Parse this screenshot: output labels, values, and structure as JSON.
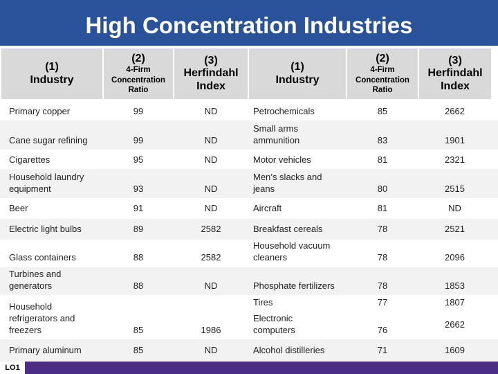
{
  "title": "High Concentration Industries",
  "columns": {
    "c1_num": "(1)",
    "c1_label": "Industry",
    "c2_num": "(2)",
    "c2_label_1": "4-Firm",
    "c2_label_2": "Concentration",
    "c2_label_3": "Ratio",
    "c3_num": "(3)",
    "c3_label_1": "Herfindahl",
    "c3_label_2": "Index",
    "c4_num": "(1)",
    "c4_label": "Industry",
    "c5_num": "(2)",
    "c5_label_1": "4-Firm",
    "c5_label_2": "Concentration",
    "c5_label_3": "Ratio",
    "c6_num": "(3)",
    "c6_label_1": "Herfindahl",
    "c6_label_2": "Index"
  },
  "rows": [
    {
      "left_industry": "Primary copper",
      "left_ratio": "99",
      "left_index": "ND",
      "right_industry": "Petrochemicals",
      "right_ratio": "85",
      "right_index": "2662"
    },
    {
      "left_industry": "Cane sugar refining",
      "left_ratio": "99",
      "left_index": "ND",
      "right_industry": "Small arms ammunition",
      "right_ratio": "83",
      "right_index": "1901"
    },
    {
      "left_industry": "Cigarettes",
      "left_ratio": "95",
      "left_index": "ND",
      "right_industry": "Motor vehicles",
      "right_ratio": "81",
      "right_index": "2321"
    },
    {
      "left_industry": "Household laundry equipment",
      "left_ratio": "93",
      "left_index": "ND",
      "right_industry": "Men’s slacks and jeans",
      "right_ratio": "80",
      "right_index": "2515"
    },
    {
      "left_industry": "Beer",
      "left_ratio": "91",
      "left_index": "ND",
      "right_industry": "Aircraft",
      "right_ratio": "81",
      "right_index": "ND"
    },
    {
      "left_industry": "Electric light bulbs",
      "left_ratio": "89",
      "left_index": "2582",
      "right_industry": "Breakfast cereals",
      "right_ratio": "78",
      "right_index": "2521"
    },
    {
      "left_industry": "Glass containers",
      "left_ratio": "88",
      "left_index": "2582",
      "right_industry": "Household vacuum cleaners",
      "right_ratio": "78",
      "right_index": "2096"
    },
    {
      "left_industry": "Turbines and generators",
      "left_ratio": "88",
      "left_index": "ND",
      "right_industry": "Phosphate fertilizers",
      "right_ratio": "78",
      "right_index": "1853"
    },
    {
      "left_industry": "Household refrigerators and freezers",
      "left_ratio": "85",
      "left_index": "1986",
      "right_industry": "Tires",
      "right_ratio": "77",
      "right_index": "1807",
      "right_industry_b": "Electronic computers",
      "right_ratio_b": "76",
      "right_index_b": "2662"
    },
    {
      "left_industry": "Primary aluminum",
      "left_ratio": "85",
      "left_index": "ND",
      "right_industry": "Alcohol distilleries",
      "right_ratio": "71",
      "right_index": "1609"
    }
  ],
  "footer_label": "LO1"
}
